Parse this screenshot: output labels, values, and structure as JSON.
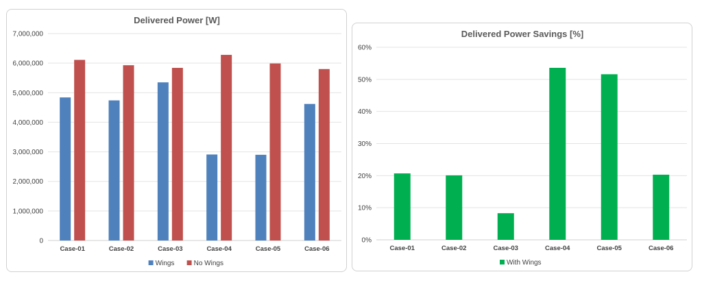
{
  "chart_data": [
    {
      "type": "bar",
      "title": "Delivered Power [W]",
      "categories": [
        "Case-01",
        "Case-02",
        "Case-03",
        "Case-04",
        "Case-05",
        "Case-06"
      ],
      "series": [
        {
          "name": "Wings",
          "color": "#4f81bd",
          "values": [
            4840000,
            4740000,
            5350000,
            2910000,
            2900000,
            4620000
          ]
        },
        {
          "name": "No Wings",
          "color": "#c0504d",
          "values": [
            6110000,
            5930000,
            5840000,
            6280000,
            5990000,
            5800000
          ]
        }
      ],
      "ylim": [
        0,
        7000000
      ],
      "yticks": [
        0,
        1000000,
        2000000,
        3000000,
        4000000,
        5000000,
        6000000,
        7000000
      ],
      "ytick_labels": [
        "0",
        "1,000,000",
        "2,000,000",
        "3,000,000",
        "4,000,000",
        "5,000,000",
        "6,000,000",
        "7,000,000"
      ],
      "grid": true,
      "legend_position": "bottom"
    },
    {
      "type": "bar",
      "title": "Delivered Power Savings [%]",
      "categories": [
        "Case-01",
        "Case-02",
        "Case-03",
        "Case-04",
        "Case-05",
        "Case-06"
      ],
      "series": [
        {
          "name": "With Wings",
          "color": "#00b050",
          "values": [
            20.7,
            20.1,
            8.3,
            53.6,
            51.6,
            20.3
          ]
        }
      ],
      "ylim": [
        0,
        60
      ],
      "yticks": [
        0,
        10,
        20,
        30,
        40,
        50,
        60
      ],
      "ytick_labels": [
        "0%",
        "10%",
        "20%",
        "30%",
        "40%",
        "50%",
        "60%"
      ],
      "grid": true,
      "legend_position": "bottom"
    }
  ]
}
